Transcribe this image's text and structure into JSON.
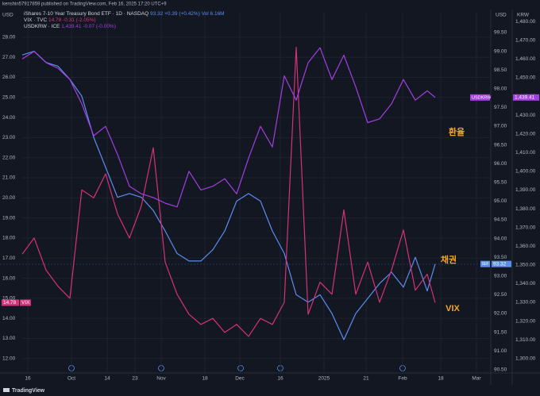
{
  "header": "kenshin57917859 published on TradingView.com, Feb 16, 2025 17:20 UTC+9",
  "footer": "TradingView",
  "chart_data": {
    "type": "line",
    "x": [
      0,
      3,
      6,
      9,
      12,
      15,
      18,
      21,
      24,
      27,
      30,
      33,
      36,
      39,
      42,
      45,
      48,
      51,
      54,
      57,
      60,
      63,
      66,
      69,
      72,
      75,
      78,
      81,
      84,
      87,
      90,
      93,
      96,
      99,
      102,
      104
    ],
    "xlim": [
      -5.6,
      118
    ],
    "xticks": [
      {
        "value": 1.4,
        "label": "16"
      },
      {
        "value": 12.4,
        "label": "Oct"
      },
      {
        "value": 21.4,
        "label": "14"
      },
      {
        "value": 28.4,
        "label": "23"
      },
      {
        "value": 35,
        "label": "Nov"
      },
      {
        "value": 46,
        "label": "18"
      },
      {
        "value": 54.8,
        "label": "Dec"
      },
      {
        "value": 65,
        "label": "16"
      },
      {
        "value": 76,
        "label": "2025"
      },
      {
        "value": 86.6,
        "label": "21"
      },
      {
        "value": 95.8,
        "label": "Feb"
      },
      {
        "value": 105.4,
        "label": "18"
      },
      {
        "value": 114.4,
        "label": "Mar"
      }
    ],
    "y_label": "USD",
    "y2_label": "USD",
    "y3_label": "KRW",
    "ylim": [
      11.28,
      29.26
    ],
    "yticks": [
      {
        "value": 12,
        "label": "12.00"
      },
      {
        "value": 13,
        "label": "13.00"
      },
      {
        "value": 14,
        "label": "14.00"
      },
      {
        "value": 15,
        "label": "15.00"
      },
      {
        "value": 16,
        "label": "16.00"
      },
      {
        "value": 17,
        "label": "17.00"
      },
      {
        "value": 18,
        "label": "18.00"
      },
      {
        "value": 19,
        "label": "19.00"
      },
      {
        "value": 20,
        "label": "20.00"
      },
      {
        "value": 21,
        "label": "21.00"
      },
      {
        "value": 22,
        "label": "22.00"
      },
      {
        "value": 23,
        "label": "23.00"
      },
      {
        "value": 24,
        "label": "24.00"
      },
      {
        "value": 25,
        "label": "25.00"
      },
      {
        "value": 26,
        "label": "26.00"
      },
      {
        "value": 27,
        "label": "27.00"
      },
      {
        "value": 28,
        "label": "28.00"
      }
    ],
    "y2lim": [
      90.41,
      100.05
    ],
    "y2ticks": [
      {
        "value": 90.5,
        "label": "90.50"
      },
      {
        "value": 91,
        "label": "91.00"
      },
      {
        "value": 91.5,
        "label": "91.50"
      },
      {
        "value": 92,
        "label": "92.00"
      },
      {
        "value": 92.5,
        "label": "92.50"
      },
      {
        "value": 93,
        "label": "93.00"
      },
      {
        "value": 93.5,
        "label": "93.50"
      },
      {
        "value": 94,
        "label": "94.00"
      },
      {
        "value": 94.5,
        "label": "94.50"
      },
      {
        "value": 95,
        "label": "95.00"
      },
      {
        "value": 95.5,
        "label": "95.50"
      },
      {
        "value": 96,
        "label": "96.00"
      },
      {
        "value": 96.5,
        "label": "96.50"
      },
      {
        "value": 97,
        "label": "97.00"
      },
      {
        "value": 97.5,
        "label": "97.50"
      },
      {
        "value": 98,
        "label": "98.00"
      },
      {
        "value": 98.5,
        "label": "98.50"
      },
      {
        "value": 99,
        "label": "99.00"
      },
      {
        "value": 99.5,
        "label": "99.50"
      }
    ],
    "y3lim": [
      1292.3,
      1485.1
    ],
    "y3ticks": [
      {
        "value": 1300,
        "label": "1,300.00"
      },
      {
        "value": 1310,
        "label": "1,310.00"
      },
      {
        "value": 1320,
        "label": "1,320.00"
      },
      {
        "value": 1330,
        "label": "1,330.00"
      },
      {
        "value": 1340,
        "label": "1,340.00"
      },
      {
        "value": 1350,
        "label": "1,350.00"
      },
      {
        "value": 1360,
        "label": "1,360.00"
      },
      {
        "value": 1370,
        "label": "1,370.00"
      },
      {
        "value": 1380,
        "label": "1,380.00"
      },
      {
        "value": 1390,
        "label": "1,390.00"
      },
      {
        "value": 1400,
        "label": "1,400.00"
      },
      {
        "value": 1410,
        "label": "1,410.00"
      },
      {
        "value": 1420,
        "label": "1,420.00"
      },
      {
        "value": 1430,
        "label": "1,430.00"
      },
      {
        "value": 1440,
        "label": "1,440.00"
      },
      {
        "value": 1450,
        "label": "1,450.00"
      },
      {
        "value": 1460,
        "label": "1,460.00"
      },
      {
        "value": 1470,
        "label": "1,470.00"
      },
      {
        "value": 1480,
        "label": "1,480.00"
      }
    ],
    "grid": true,
    "series": [
      {
        "name": "iShares 7-10 Year Treasury Bond ETF · 1D · NASDAQ",
        "last": "93.32",
        "change": "+0.39 (+0.42%)",
        "volume": "Vol 6.16M",
        "tag": "IEF",
        "color": "#5b8def",
        "axis": "y2",
        "values": [
          98.9,
          99.0,
          98.7,
          98.6,
          98.25,
          97.8,
          96.7,
          95.9,
          95.1,
          95.2,
          95.1,
          94.75,
          94.2,
          93.6,
          93.4,
          93.4,
          93.7,
          94.2,
          95.0,
          95.2,
          95.0,
          94.2,
          93.6,
          92.5,
          92.3,
          92.5,
          92.0,
          91.3,
          92.0,
          92.4,
          92.8,
          93.1,
          92.7,
          93.5,
          92.6,
          93.32
        ]
      },
      {
        "name": "VIX · TVC",
        "last": "14.78",
        "change": "-0.31 (-2.05%)",
        "tag": "VIX",
        "color": "#d6317b",
        "axis": "y",
        "values": [
          17.2,
          18.0,
          16.4,
          15.6,
          15.0,
          20.4,
          20.0,
          21.2,
          19.2,
          18.0,
          19.6,
          22.5,
          16.8,
          15.2,
          14.2,
          13.7,
          14.0,
          13.3,
          13.7,
          13.1,
          14.0,
          13.7,
          14.8,
          27.5,
          14.2,
          15.8,
          15.2,
          19.4,
          15.2,
          16.8,
          14.8,
          16.4,
          18.4,
          15.4,
          16.2,
          14.78
        ]
      },
      {
        "name": "USDKRW · ICE",
        "last": "1,439.41",
        "change": "-0.07 (-0.00%)",
        "tag": "USDKRW",
        "color": "#a33fe0",
        "axis": "y3",
        "values": [
          1460,
          1464,
          1458,
          1455,
          1449,
          1436,
          1419,
          1424,
          1409,
          1392,
          1388,
          1386,
          1383,
          1381,
          1400,
          1390,
          1392,
          1396,
          1388,
          1407,
          1424,
          1413,
          1451,
          1438,
          1458,
          1466,
          1449,
          1462,
          1445,
          1426,
          1428,
          1436,
          1449,
          1438,
          1443,
          1439.41
        ]
      }
    ],
    "annotations": [
      {
        "text": "환율",
        "series": 2
      },
      {
        "text": "채권",
        "series": 0
      },
      {
        "text": "VIX",
        "series": 1
      }
    ]
  }
}
